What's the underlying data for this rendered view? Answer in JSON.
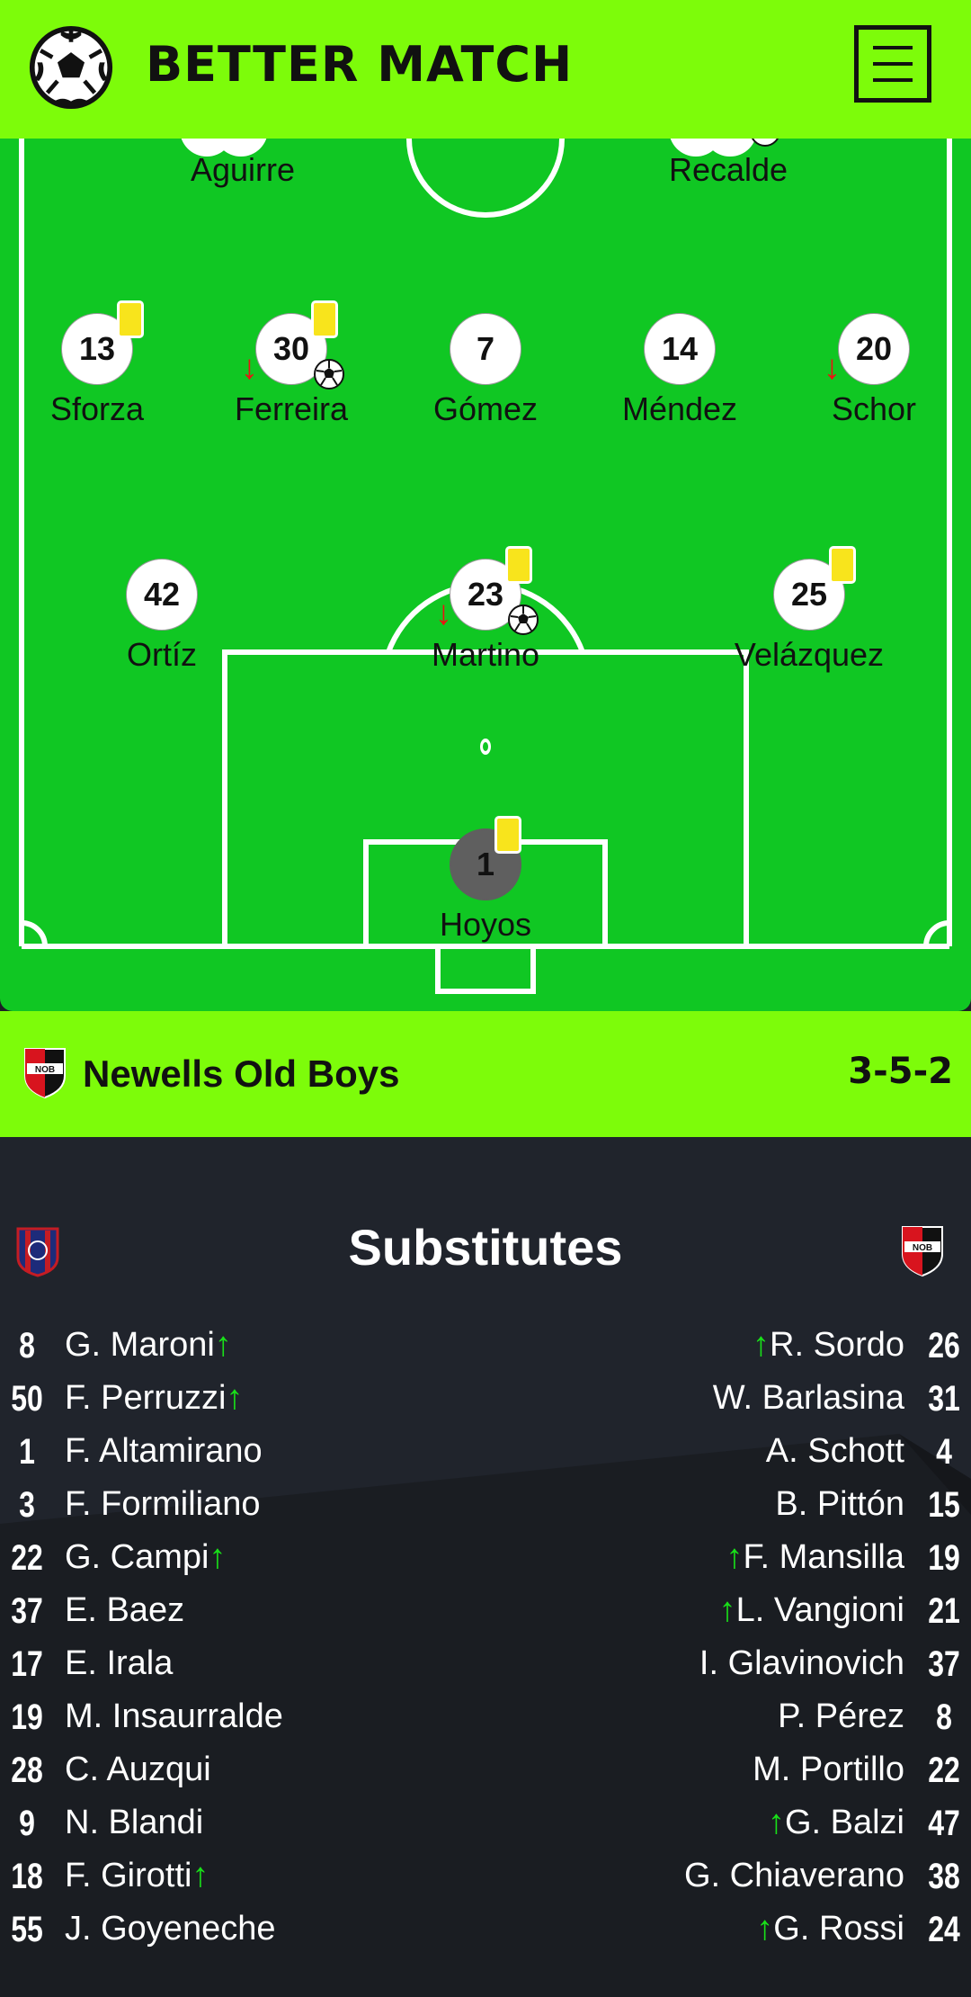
{
  "app": {
    "title": "BETTER MATCH"
  },
  "icons": {
    "logo": "soccer-ball-icon",
    "menu": "hamburger-menu-icon",
    "card": "yellow-card-icon",
    "sub_out": "red-down-arrow-icon",
    "sub_in": "green-up-arrow-icon",
    "goal": "soccer-ball-icon"
  },
  "colors": {
    "accent": "#7dfc0a",
    "pitch": "#10c723",
    "yellow_card": "#f8e41c",
    "sub_out": "#e11111",
    "sub_in": "#19e019",
    "dark_bg": "#20242c"
  },
  "pitch": {
    "players": [
      {
        "name": "Aguirre"
      },
      {
        "name": "Recalde"
      },
      {
        "number": "13",
        "name": "Sforza"
      },
      {
        "number": "30",
        "name": "Ferreira"
      },
      {
        "number": "7",
        "name": "Gómez"
      },
      {
        "number": "14",
        "name": "Méndez"
      },
      {
        "number": "20",
        "name": "Schor"
      },
      {
        "number": "42",
        "name": "Ortíz"
      },
      {
        "number": "23",
        "name": "Martino"
      },
      {
        "number": "25",
        "name": "Velázquez"
      },
      {
        "number": "1",
        "name": "Hoyos"
      }
    ]
  },
  "team": {
    "name": "Newells Old Boys",
    "formation": "3-5-2",
    "crest_text": "NOB"
  },
  "substitutes": {
    "title": "Substitutes",
    "home": [
      {
        "number": "8",
        "name": "G. Maroni",
        "in": true
      },
      {
        "number": "50",
        "name": "F. Perruzzi",
        "in": true
      },
      {
        "number": "1",
        "name": "F. Altamirano",
        "in": false
      },
      {
        "number": "3",
        "name": "F. Formiliano",
        "in": false
      },
      {
        "number": "22",
        "name": "G. Campi",
        "in": true
      },
      {
        "number": "37",
        "name": "E. Baez",
        "in": false
      },
      {
        "number": "17",
        "name": "E. Irala",
        "in": false
      },
      {
        "number": "19",
        "name": "M. Insaurralde",
        "in": false
      },
      {
        "number": "28",
        "name": "C. Auzqui",
        "in": false
      },
      {
        "number": "9",
        "name": "N. Blandi",
        "in": false
      },
      {
        "number": "18",
        "name": "F. Girotti",
        "in": true
      },
      {
        "number": "55",
        "name": "J. Goyeneche",
        "in": false
      }
    ],
    "away": [
      {
        "number": "26",
        "name": "R. Sordo",
        "in": true
      },
      {
        "number": "31",
        "name": "W. Barlasina",
        "in": false
      },
      {
        "number": "4",
        "name": "A. Schott",
        "in": false
      },
      {
        "number": "15",
        "name": "B. Pittón",
        "in": false
      },
      {
        "number": "19",
        "name": "F. Mansilla",
        "in": true
      },
      {
        "number": "21",
        "name": "L. Vangioni",
        "in": true
      },
      {
        "number": "37",
        "name": "I. Glavinovich",
        "in": false
      },
      {
        "number": "8",
        "name": "P. Pérez",
        "in": false
      },
      {
        "number": "22",
        "name": "M. Portillo",
        "in": false
      },
      {
        "number": "47",
        "name": "G. Balzi",
        "in": true
      },
      {
        "number": "38",
        "name": "G. Chiaverano",
        "in": false
      },
      {
        "number": "24",
        "name": "G. Rossi",
        "in": true
      }
    ]
  }
}
